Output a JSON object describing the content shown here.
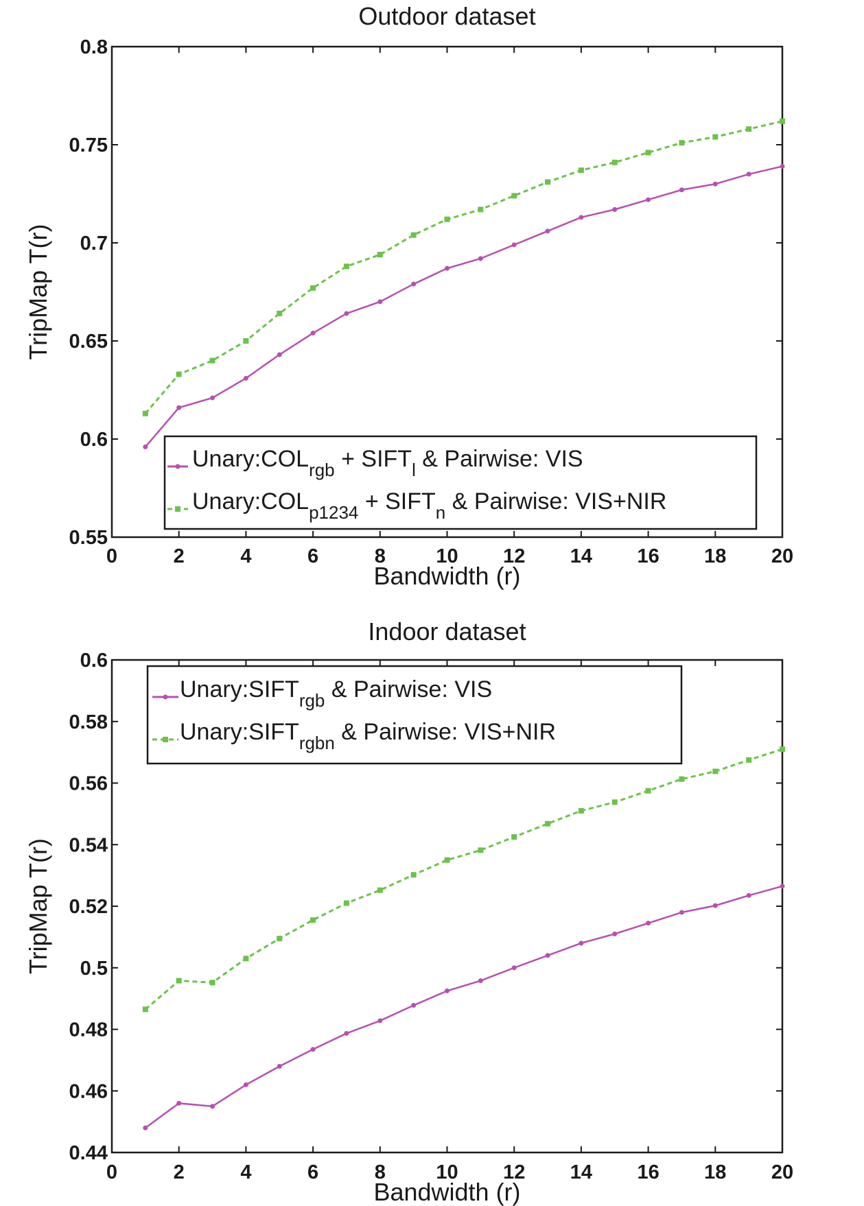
{
  "chart_data": [
    {
      "type": "line",
      "title": "Outdoor dataset",
      "xlabel": "Bandwidth (r)",
      "ylabel": "TripMap T(r)",
      "xlim": [
        0,
        20
      ],
      "ylim": [
        0.55,
        0.8
      ],
      "xticks": [
        0,
        2,
        4,
        6,
        8,
        10,
        12,
        14,
        16,
        18,
        20
      ],
      "yticks": [
        0.55,
        0.6,
        0.65,
        0.7,
        0.75,
        0.8
      ],
      "xtick_labels": [
        "0",
        "2",
        "4",
        "6",
        "8",
        "10",
        "12",
        "14",
        "16",
        "18",
        "20"
      ],
      "ytick_labels": [
        "0.55",
        "0.6",
        "0.65",
        "0.7",
        "0.75",
        "0.8"
      ],
      "grid": false,
      "legend_position": "bottom-right",
      "x": [
        1,
        2,
        3,
        4,
        5,
        6,
        7,
        8,
        9,
        10,
        11,
        12,
        13,
        14,
        15,
        16,
        17,
        18,
        19,
        20
      ],
      "series": [
        {
          "name": "Unary:COL_rgb + SIFT_l & Pairwise: VIS",
          "legend_parts": {
            "prefix": "Unary:COL",
            "sub1": "rgb",
            "middle": " + SIFT",
            "sub2": "l",
            "suffix": " & Pairwise: VIS"
          },
          "color": "#b84fb0",
          "style": "solid",
          "marker": "dot",
          "values": [
            0.596,
            0.616,
            0.621,
            0.631,
            0.643,
            0.654,
            0.664,
            0.67,
            0.679,
            0.687,
            0.692,
            0.699,
            0.706,
            0.713,
            0.717,
            0.722,
            0.727,
            0.73,
            0.735,
            0.739
          ]
        },
        {
          "name": "Unary:COL_p1234 + SIFT_n & Pairwise: VIS+NIR",
          "legend_parts": {
            "prefix": "Unary:COL",
            "sub1": "p1234",
            "middle": " + SIFT",
            "sub2": "n",
            "suffix": " & Pairwise: VIS+NIR"
          },
          "color": "#6cc24a",
          "style": "dashed",
          "marker": "square",
          "values": [
            0.613,
            0.633,
            0.64,
            0.65,
            0.664,
            0.677,
            0.688,
            0.694,
            0.704,
            0.712,
            0.717,
            0.724,
            0.731,
            0.737,
            0.741,
            0.746,
            0.751,
            0.754,
            0.758,
            0.762
          ]
        }
      ]
    },
    {
      "type": "line",
      "title": "Indoor dataset",
      "xlabel": "Bandwidth (r)",
      "ylabel": "TripMap T(r)",
      "xlim": [
        0,
        20
      ],
      "ylim": [
        0.44,
        0.6
      ],
      "xticks": [
        0,
        2,
        4,
        6,
        8,
        10,
        12,
        14,
        16,
        18,
        20
      ],
      "yticks": [
        0.44,
        0.46,
        0.48,
        0.5,
        0.52,
        0.54,
        0.56,
        0.58,
        0.6
      ],
      "xtick_labels": [
        "0",
        "2",
        "4",
        "6",
        "8",
        "10",
        "12",
        "14",
        "16",
        "18",
        "20"
      ],
      "ytick_labels": [
        "0.44",
        "0.46",
        "0.48",
        "0.5",
        "0.52",
        "0.54",
        "0.56",
        "0.58",
        "0.6"
      ],
      "grid": false,
      "legend_position": "top-left",
      "x": [
        1,
        2,
        3,
        4,
        5,
        6,
        7,
        8,
        9,
        10,
        11,
        12,
        13,
        14,
        15,
        16,
        17,
        18,
        19,
        20
      ],
      "series": [
        {
          "name": "Unary:SIFT_rgb & Pairwise: VIS",
          "legend_parts": {
            "prefix": "Unary:SIFT",
            "sub1": "rgb",
            "middle": "",
            "sub2": "",
            "suffix": " & Pairwise: VIS"
          },
          "color": "#b84fb0",
          "style": "solid",
          "marker": "dot",
          "values": [
            0.448,
            0.456,
            0.455,
            0.462,
            0.468,
            0.4735,
            0.4787,
            0.4828,
            0.4878,
            0.4925,
            0.4958,
            0.5,
            0.504,
            0.508,
            0.511,
            0.5145,
            0.518,
            0.5202,
            0.5235,
            0.5265
          ]
        },
        {
          "name": "Unary:SIFT_rgbn & Pairwise: VIS+NIR",
          "legend_parts": {
            "prefix": "Unary:SIFT",
            "sub1": "rgbn",
            "middle": "",
            "sub2": "",
            "suffix": " & Pairwise: VIS+NIR"
          },
          "color": "#6cc24a",
          "style": "dashed",
          "marker": "square",
          "values": [
            0.4865,
            0.4958,
            0.4952,
            0.503,
            0.5095,
            0.5155,
            0.521,
            0.5252,
            0.5302,
            0.535,
            0.5382,
            0.5425,
            0.5468,
            0.551,
            0.5538,
            0.5575,
            0.5613,
            0.5638,
            0.5675,
            0.571
          ]
        }
      ]
    }
  ]
}
